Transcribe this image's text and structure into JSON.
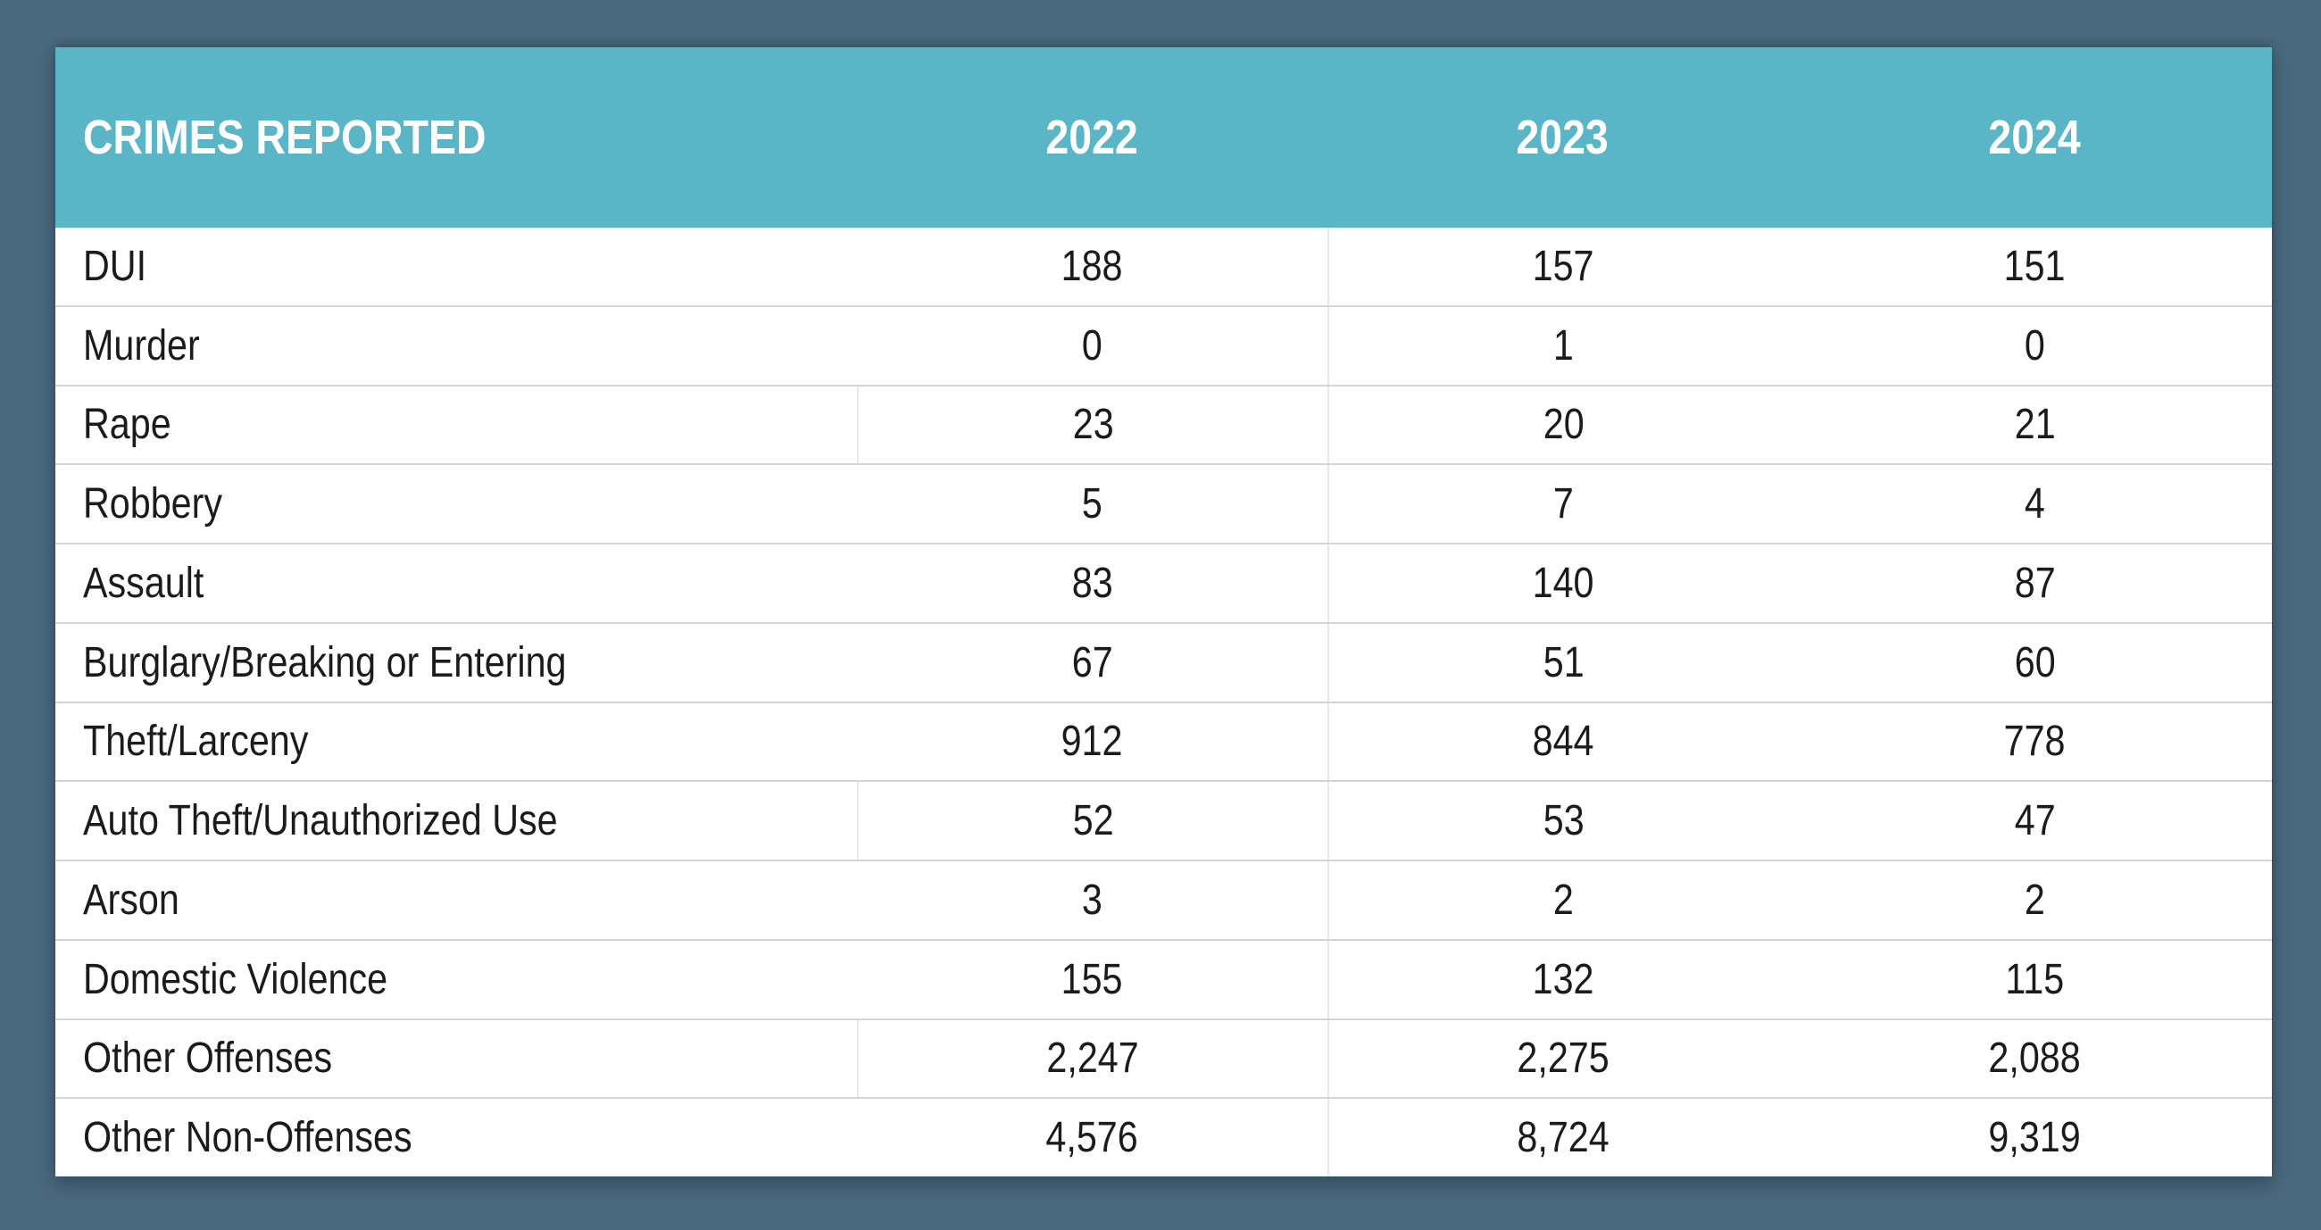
{
  "page": {
    "background_color": "#4a697e"
  },
  "theme": {
    "header_bg": "#5ab6c7",
    "header_text_color": "#ffffff",
    "body_text_color": "#1b1b1b",
    "row_divider_color": "#d8d4d0"
  },
  "chart_data": {
    "type": "table",
    "title": "CRIMES REPORTED",
    "columns": [
      "CRIMES REPORTED",
      "2022",
      "2023",
      "2024"
    ],
    "rows": [
      [
        "DUI",
        188,
        157,
        151
      ],
      [
        "Murder",
        0,
        1,
        0
      ],
      [
        "Rape",
        23,
        20,
        21
      ],
      [
        "Robbery",
        5,
        7,
        4
      ],
      [
        "Assault",
        83,
        140,
        87
      ],
      [
        "Burglary/Breaking or Entering",
        67,
        51,
        60
      ],
      [
        "Theft/Larceny",
        912,
        844,
        778
      ],
      [
        "Auto Theft/Unauthorized Use",
        52,
        53,
        47
      ],
      [
        "Arson",
        3,
        2,
        2
      ],
      [
        "Domestic Violence",
        155,
        132,
        115
      ],
      [
        "Other Offenses",
        2247,
        2275,
        2088
      ],
      [
        "Other Non-Offenses",
        4576,
        8724,
        9319
      ]
    ]
  }
}
